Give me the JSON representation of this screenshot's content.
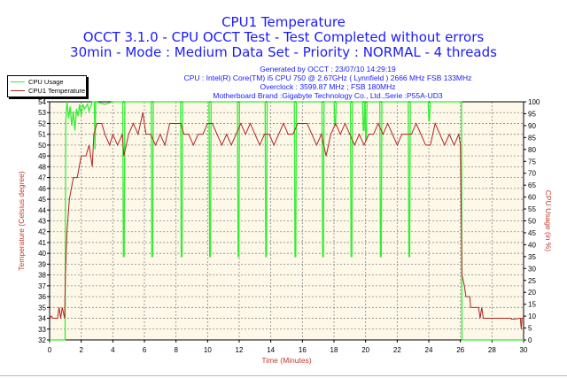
{
  "chart_data": {
    "type": "line",
    "title": "CPU1 Temperature",
    "subtitle_lines": [
      "OCCT 3.1.0 - CPU OCCT Test - Test Completed without errors",
      "30min - Mode : Medium Data Set - Priority : NORMAL - 4 threads"
    ],
    "info_lines": [
      "Generated by OCCT : 23/07/10 14:29:19",
      "CPU : Intel(R) Core(TM) i5 CPU 750 @ 2.67GHz ( Lynnfield ) 2666 MHz FSB 133MHz",
      "Overclock : 3599.87 MHz ; FSB 180MHz",
      "Motherboard Brand :Gigabyte Technology Co., Ltd.,Serie :P55A-UD3"
    ],
    "xlabel": "Time (Minutes)",
    "ylabel": "Temperature (Celsius degree)",
    "y2label": "CPU Usage (in %)",
    "xlim": [
      0,
      30
    ],
    "ylim": [
      32,
      54
    ],
    "y2lim": [
      0,
      100
    ],
    "xticks": [
      0,
      2,
      4,
      6,
      8,
      10,
      12,
      14,
      16,
      18,
      20,
      22,
      24,
      26,
      28,
      30
    ],
    "yticks": [
      32,
      33,
      34,
      35,
      36,
      37,
      38,
      39,
      40,
      41,
      42,
      43,
      44,
      45,
      46,
      47,
      48,
      49,
      50,
      51,
      52,
      53,
      54
    ],
    "y2ticks": [
      0,
      5,
      10,
      15,
      20,
      25,
      30,
      35,
      40,
      45,
      50,
      55,
      60,
      65,
      70,
      75,
      80,
      85,
      90,
      95,
      100
    ],
    "grid": true,
    "legend_position": "top-left",
    "colors": {
      "cpu_usage": "#33ee33",
      "temperature": "#b22222",
      "title": "#1a1aff",
      "axis_label": "#c0392b",
      "plot_bg": "#fdf8e8"
    },
    "series": [
      {
        "name": "CPU Usage",
        "axis": "right",
        "color": "#33ee33",
        "points": [
          [
            0,
            0
          ],
          [
            0.98,
            0
          ],
          [
            1.02,
            92
          ],
          [
            1.1,
            100
          ],
          [
            1.2,
            93
          ],
          [
            1.3,
            98
          ],
          [
            1.4,
            90
          ],
          [
            1.5,
            96
          ],
          [
            1.6,
            88
          ],
          [
            1.7,
            97
          ],
          [
            1.8,
            94
          ],
          [
            1.9,
            99
          ],
          [
            2.0,
            94
          ],
          [
            2.1,
            99
          ],
          [
            2.2,
            97
          ],
          [
            2.4,
            99
          ],
          [
            2.5,
            96
          ],
          [
            2.7,
            100
          ],
          [
            2.83,
            100
          ],
          [
            2.87,
            80
          ],
          [
            2.92,
            100
          ],
          [
            3.5,
            99
          ],
          [
            4.0,
            100
          ],
          [
            26.05,
            100
          ]
        ],
        "dips": [
          [
            4.67,
            35
          ],
          [
            6.47,
            35
          ],
          [
            8.33,
            35
          ],
          [
            10.13,
            35
          ],
          [
            11.93,
            35
          ],
          [
            13.68,
            35
          ],
          [
            15.53,
            35
          ],
          [
            17.28,
            35
          ],
          [
            18.05,
            90
          ],
          [
            19.08,
            35
          ],
          [
            19.85,
            88
          ],
          [
            20.0,
            84
          ],
          [
            20.94,
            35
          ],
          [
            22.74,
            35
          ],
          [
            24.0,
            92
          ]
        ],
        "end": [
          [
            26.07,
            100
          ],
          [
            26.1,
            0
          ],
          [
            30,
            0
          ]
        ]
      },
      {
        "name": "CPU1 Temperature",
        "axis": "left",
        "color": "#b22222",
        "points": [
          [
            0,
            34
          ],
          [
            0.1,
            34.2
          ],
          [
            0.2,
            34
          ],
          [
            0.5,
            34
          ],
          [
            0.6,
            35
          ],
          [
            0.7,
            34
          ],
          [
            0.8,
            35
          ],
          [
            0.95,
            34
          ],
          [
            1.0,
            38
          ],
          [
            1.1,
            42
          ],
          [
            1.25,
            45
          ],
          [
            1.5,
            47
          ],
          [
            1.75,
            47
          ],
          [
            2.0,
            49
          ],
          [
            2.3,
            49
          ],
          [
            2.5,
            50
          ],
          [
            2.7,
            48
          ],
          [
            2.8,
            51
          ],
          [
            3.0,
            52
          ],
          [
            3.3,
            52
          ],
          [
            3.5,
            51
          ],
          [
            3.8,
            50
          ],
          [
            4.0,
            51
          ],
          [
            4.3,
            50
          ],
          [
            4.6,
            51
          ],
          [
            4.7,
            49
          ],
          [
            5.0,
            51
          ],
          [
            5.3,
            52
          ],
          [
            5.6,
            51
          ],
          [
            5.9,
            53
          ],
          [
            6.1,
            51
          ],
          [
            6.4,
            51
          ],
          [
            6.7,
            50
          ],
          [
            7.0,
            51
          ],
          [
            7.3,
            50
          ],
          [
            7.6,
            52
          ],
          [
            8.0,
            52
          ],
          [
            8.3,
            52
          ],
          [
            8.5,
            51
          ],
          [
            8.8,
            51
          ],
          [
            9.1,
            50
          ],
          [
            9.4,
            51
          ],
          [
            9.7,
            51
          ],
          [
            10.0,
            52
          ],
          [
            10.3,
            52
          ],
          [
            10.6,
            51
          ],
          [
            10.9,
            50
          ],
          [
            11.2,
            51
          ],
          [
            11.5,
            50
          ],
          [
            11.8,
            51
          ],
          [
            12.1,
            52
          ],
          [
            12.4,
            51
          ],
          [
            12.7,
            52
          ],
          [
            13.0,
            51
          ],
          [
            13.3,
            50
          ],
          [
            13.6,
            51
          ],
          [
            13.9,
            51
          ],
          [
            14.2,
            50
          ],
          [
            14.5,
            51
          ],
          [
            14.8,
            52
          ],
          [
            15.1,
            51
          ],
          [
            15.4,
            51
          ],
          [
            15.7,
            52
          ],
          [
            16.0,
            52
          ],
          [
            16.3,
            52
          ],
          [
            16.6,
            51
          ],
          [
            16.9,
            50
          ],
          [
            17.2,
            51
          ],
          [
            17.5,
            49
          ],
          [
            17.8,
            51
          ],
          [
            18.1,
            52
          ],
          [
            18.4,
            51
          ],
          [
            18.7,
            52
          ],
          [
            19.0,
            51
          ],
          [
            19.3,
            50
          ],
          [
            19.6,
            51
          ],
          [
            19.9,
            50
          ],
          [
            20.2,
            51
          ],
          [
            20.5,
            51
          ],
          [
            20.8,
            52
          ],
          [
            21.1,
            51
          ],
          [
            21.4,
            52
          ],
          [
            21.7,
            51
          ],
          [
            22.0,
            50
          ],
          [
            22.3,
            51
          ],
          [
            22.6,
            51
          ],
          [
            22.9,
            51
          ],
          [
            23.2,
            52
          ],
          [
            23.5,
            51
          ],
          [
            23.8,
            50
          ],
          [
            24.1,
            50
          ],
          [
            24.4,
            52
          ],
          [
            24.7,
            51
          ],
          [
            25.0,
            50
          ],
          [
            25.3,
            51
          ],
          [
            25.6,
            50
          ],
          [
            25.9,
            51
          ],
          [
            26.0,
            50
          ],
          [
            26.05,
            44
          ],
          [
            26.1,
            38
          ],
          [
            26.25,
            37
          ],
          [
            26.35,
            36
          ],
          [
            26.6,
            36
          ],
          [
            26.65,
            35
          ],
          [
            27.15,
            35
          ],
          [
            27.25,
            34
          ],
          [
            27.35,
            35
          ],
          [
            27.45,
            34
          ],
          [
            29.2,
            34
          ],
          [
            29.25,
            33.9
          ],
          [
            29.8,
            34
          ],
          [
            29.85,
            33
          ],
          [
            29.9,
            34
          ],
          [
            30,
            34
          ]
        ]
      }
    ]
  }
}
